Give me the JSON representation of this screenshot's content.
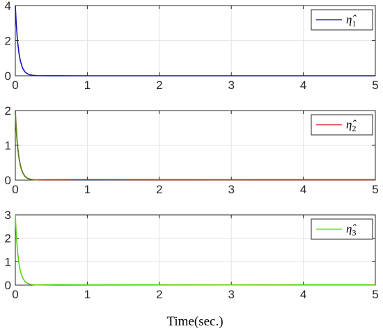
{
  "chart_data": [
    {
      "type": "line",
      "xlim": [
        0,
        5
      ],
      "ylim": [
        0,
        4
      ],
      "xticks": [
        "0",
        "1",
        "2",
        "3",
        "4",
        "5"
      ],
      "yticks": [
        "0",
        "2",
        "4"
      ],
      "grid": true,
      "legend_position": "top-right",
      "series": [
        {
          "name": "η̂1",
          "name_base": "η̂",
          "name_sub": "1",
          "color": "#1414b4",
          "x": [
            0,
            0.01,
            0.02,
            0.03,
            0.05,
            0.07,
            0.1,
            0.13,
            0.16,
            0.2,
            0.25,
            0.3,
            0.4,
            0.6,
            1,
            2,
            3,
            4,
            5
          ],
          "y": [
            4,
            3.2,
            2.55,
            2.0,
            1.3,
            0.85,
            0.45,
            0.24,
            0.13,
            0.06,
            0.025,
            0.01,
            0.003,
            0.001,
            0,
            0,
            0,
            0,
            0
          ]
        }
      ]
    },
    {
      "type": "line",
      "xlim": [
        0,
        5
      ],
      "ylim": [
        0,
        2
      ],
      "xticks": [
        "0",
        "1",
        "2",
        "3",
        "4",
        "5"
      ],
      "yticks": [
        "0",
        "1",
        "2"
      ],
      "grid": true,
      "legend_position": "top-right",
      "series": [
        {
          "name": "η̂2",
          "name_base": "η̂",
          "name_sub": "2",
          "color": "#d62020",
          "x": [
            0,
            0.01,
            0.02,
            0.03,
            0.05,
            0.07,
            0.1,
            0.13,
            0.16,
            0.2,
            0.25,
            0.3,
            0.4,
            0.6,
            1,
            2,
            3,
            4,
            5
          ],
          "y": [
            2,
            1.6,
            1.28,
            1.0,
            0.66,
            0.43,
            0.23,
            0.12,
            0.065,
            0.03,
            0.012,
            0.006,
            0.01,
            0.012,
            0.015,
            0.012,
            0.01,
            0.012,
            0.012
          ]
        },
        {
          "name": "",
          "color": "#4c8c20",
          "x": [
            0,
            0.01,
            0.02,
            0.03,
            0.05,
            0.07,
            0.1,
            0.13,
            0.16,
            0.2,
            0.25,
            0.3
          ],
          "y": [
            1.95,
            1.55,
            1.24,
            0.97,
            0.64,
            0.41,
            0.22,
            0.11,
            0.06,
            0.028,
            0.011,
            0.005
          ]
        }
      ]
    },
    {
      "type": "line",
      "xlim": [
        0,
        5
      ],
      "ylim": [
        0,
        3
      ],
      "xticks": [
        "0",
        "1",
        "2",
        "3",
        "4",
        "5"
      ],
      "yticks": [
        "0",
        "1",
        "2",
        "3"
      ],
      "xlabel": "Time(sec.)",
      "grid": true,
      "legend_position": "top-right",
      "series": [
        {
          "name": "η̂3",
          "name_base": "η̂",
          "name_sub": "3",
          "color": "#5ad214",
          "x": [
            0,
            0.01,
            0.02,
            0.03,
            0.05,
            0.07,
            0.1,
            0.13,
            0.16,
            0.2,
            0.25,
            0.3,
            0.4,
            0.6,
            1,
            2,
            3,
            4,
            5
          ],
          "y": [
            3,
            2.35,
            1.85,
            1.45,
            0.93,
            0.6,
            0.32,
            0.17,
            0.09,
            0.04,
            0.015,
            0.008,
            0.012,
            0.02,
            0.015,
            0.012,
            0.01,
            0.012,
            0.012
          ]
        }
      ]
    }
  ]
}
